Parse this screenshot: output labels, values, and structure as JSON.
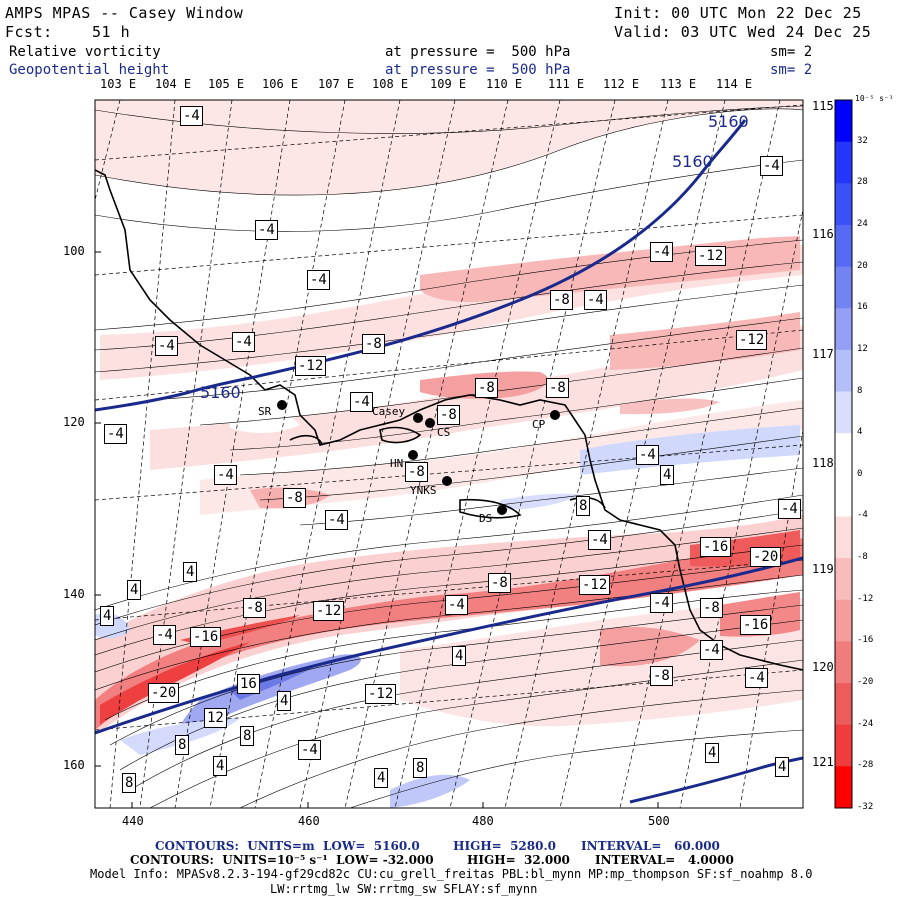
{
  "header": {
    "model_title": "AMPS MPAS -- Casey Window",
    "init_label": "Init: 00 UTC Mon 22 Dec 25",
    "fcst_label": "Fcst:",
    "fcst_value": "51 h",
    "valid_label": "Valid: 03 UTC Wed 24 Dec 25",
    "field1_name": "Relative vorticity",
    "field1_level": "at pressure =  500 hPa",
    "field1_sm": "sm= 2",
    "field2_name": "Geopotential height",
    "field2_level": "at pressure =  500 hPa",
    "field2_sm": "sm= 2"
  },
  "map": {
    "top_lon_labels": [
      "103 E",
      "104 E",
      "105 E",
      "106 E",
      "107 E",
      "108 E",
      "109 E",
      "110 E",
      "111 E",
      "112 E",
      "113 E",
      "114 E"
    ],
    "right_lat_labels": [
      "115 E",
      "116 E",
      "117 E",
      "118 E",
      "119 E",
      "120 E",
      "121 E"
    ],
    "x_ticks": [
      "440",
      "460",
      "480",
      "500"
    ],
    "y_ticks": [
      "100",
      "120",
      "140",
      "160"
    ],
    "stations": [
      {
        "name": "SR"
      },
      {
        "name": "Casey"
      },
      {
        "name": "CS"
      },
      {
        "name": "HN"
      },
      {
        "name": "YNKS"
      },
      {
        "name": "DS"
      },
      {
        "name": "CP"
      }
    ],
    "height_labels": [
      "5160",
      "5160",
      "5160"
    ],
    "vort_labels": [
      "-4",
      "-4",
      "-4",
      "-4",
      "-4",
      "-12",
      "-8",
      "-4",
      "-4",
      "-4",
      "-8",
      "-4",
      "-4",
      "-12",
      "-12",
      "-8",
      "-8",
      "-4",
      "-8",
      "-8",
      "-4",
      "-4",
      "-8",
      "-4",
      "8",
      "4",
      "-4",
      "-16",
      "-20",
      "4",
      "4",
      "-8",
      "-12",
      "-4",
      "-8",
      "-12",
      "-4",
      "-8",
      "-16",
      "-16",
      "-20",
      "-12",
      "-8",
      "4",
      "16",
      "4",
      "12",
      "8",
      "8",
      "-4",
      "4",
      "8",
      "4",
      "8",
      "4",
      "-4",
      "4",
      "4",
      "-4",
      "-4"
    ],
    "colors": {
      "contour_blue": "#1a2a8c",
      "pos_strong": "#0000ff",
      "neg_strong": "#ff0000"
    }
  },
  "colorbar": {
    "unit": "10⁻⁵ s⁻¹",
    "labels": [
      "32",
      "28",
      "24",
      "20",
      "16",
      "12",
      "8",
      "4",
      "0",
      "-4",
      "-8",
      "-12",
      "-16",
      "-20",
      "-24",
      "-28",
      "-32"
    ]
  },
  "footer": {
    "contours1": "CONTOURS:  UNITS=m  LOW=  5160.0        HIGH=  5280.0      INTERVAL=   60.000",
    "contours2": "CONTOURS:  UNITS=10⁻⁵ s⁻¹  LOW= -32.000        HIGH=  32.000      INTERVAL=   4.0000",
    "model_info": "Model Info: MPASv8.2.3-194-gf29cd82c CU:cu_grell_freitas PBL:bl_mynn MP:mp_thompson SF:sf_noahmp 8.0",
    "model_info2": "LW:rrtmg_lw SW:rrtmg_sw SFLAY:sf_mynn"
  }
}
